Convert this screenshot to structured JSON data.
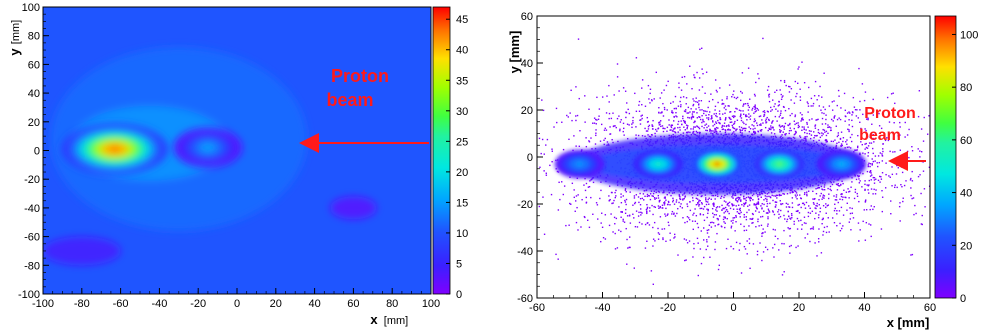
{
  "chart_data": [
    {
      "type": "heatmap",
      "subtype": "contour",
      "xlabel": "x",
      "xunit": "mm",
      "ylabel": "y",
      "yunit": "mm",
      "xlim": [
        -100,
        100
      ],
      "ylim": [
        -100,
        100
      ],
      "x_ticks": [
        -100,
        -80,
        -60,
        -40,
        -20,
        0,
        20,
        40,
        60,
        80,
        100
      ],
      "y_ticks": [
        -100,
        -80,
        -60,
        -40,
        -20,
        0,
        20,
        40,
        60,
        80,
        100
      ],
      "colorbar": {
        "min": 0,
        "max": 47,
        "ticks": [
          0,
          5,
          10,
          15,
          20,
          25,
          30,
          35,
          40,
          45
        ]
      },
      "peaks": [
        {
          "x": -63,
          "y": 1,
          "value": 46,
          "sx": 14,
          "sy": 9
        },
        {
          "x": -15,
          "y": 2,
          "value": 16,
          "sx": 9,
          "sy": 7
        }
      ],
      "annotation": {
        "text_line1": "Proton",
        "text_line2": "beam",
        "arrow": "from x=98 to x=30 at y=6"
      },
      "grid": false,
      "colorbar_placement": "right"
    },
    {
      "type": "scatter",
      "subtype": "2d-histogram",
      "xlabel": "x [mm]",
      "ylabel": "y [mm]",
      "xlim": [
        -60,
        60
      ],
      "ylim": [
        -60,
        60
      ],
      "x_ticks": [
        -60,
        -40,
        -20,
        0,
        20,
        40,
        60
      ],
      "y_ticks": [
        -60,
        -40,
        -20,
        0,
        20,
        40,
        60
      ],
      "colorbar": {
        "min": 0,
        "max": 107,
        "ticks": [
          0,
          20,
          40,
          60,
          80,
          100
        ]
      },
      "spots": [
        {
          "x": -47,
          "y": -3,
          "value": 35
        },
        {
          "x": -23,
          "y": -3,
          "value": 55
        },
        {
          "x": -5,
          "y": -3,
          "value": 105
        },
        {
          "x": 14,
          "y": -3,
          "value": 70
        },
        {
          "x": 33,
          "y": -3,
          "value": 40
        }
      ],
      "annotation": {
        "text_line1": "Proton",
        "text_line2": "beam",
        "arrow": "from x=58 to x=44 at y=-2"
      },
      "grid": false,
      "colorbar_placement": "right"
    }
  ],
  "left": {
    "ylabel_main": "y",
    "ylabel_unit": "[mm]",
    "xlabel_main": "x",
    "xlabel_unit": "[mm]",
    "annotation_1": "Proton",
    "annotation_2": "beam"
  },
  "right": {
    "ylabel": "y [mm]",
    "xlabel": "x [mm]",
    "annotation_1": "Proton",
    "annotation_2": "beam"
  }
}
